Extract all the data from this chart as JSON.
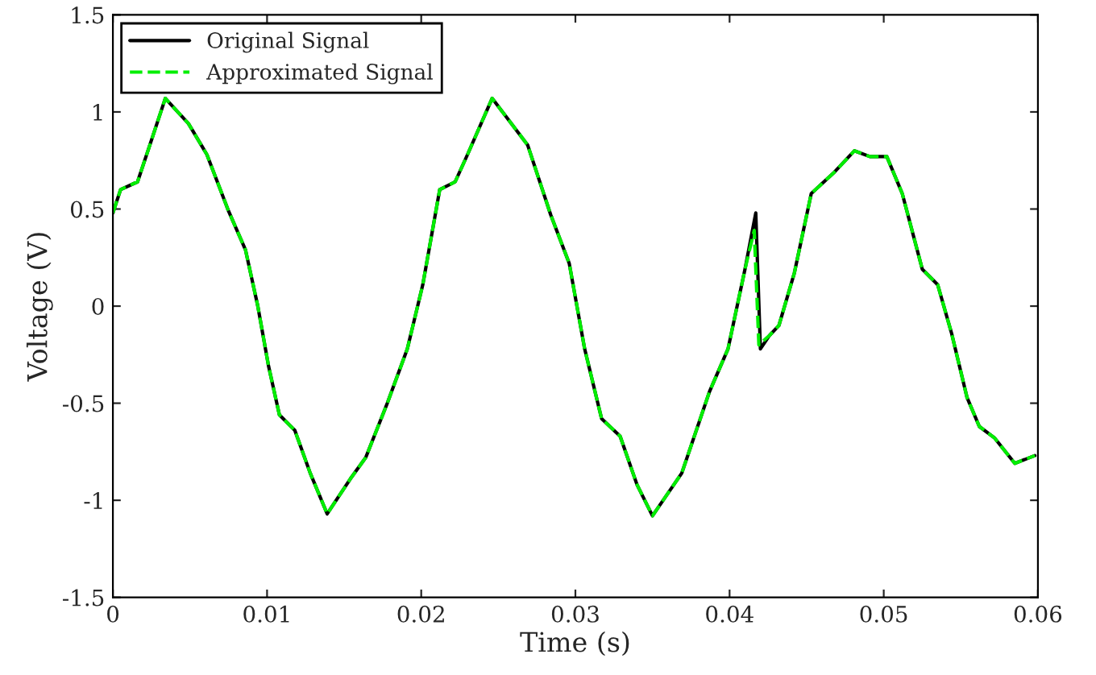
{
  "chart_data": {
    "type": "line",
    "xlabel": "Time (s)",
    "ylabel": "Voltage (V)",
    "xlim": [
      0,
      0.06
    ],
    "xticks": [
      0,
      0.01,
      0.02,
      0.03,
      0.04,
      0.05,
      0.06
    ],
    "ylim": [
      -1.5,
      1.5
    ],
    "yticks": [
      -1.5,
      -1,
      -0.5,
      0,
      0.5,
      1,
      1.5
    ],
    "grid": false,
    "legend": "top left",
    "series": [
      {
        "name": "Original Signal",
        "color": "#000000",
        "line_style": "solid",
        "x": [
          0,
          0.0005,
          0.0016,
          0.0024,
          0.0034,
          0.0049,
          0.0061,
          0.0075,
          0.0086,
          0.0094,
          0.0101,
          0.0108,
          0.0118,
          0.0128,
          0.0139,
          0.0154,
          0.0164,
          0.0178,
          0.0191,
          0.0201,
          0.0212,
          0.0222,
          0.023,
          0.0246,
          0.0269,
          0.0284,
          0.0296,
          0.0306,
          0.0317,
          0.0329,
          0.034,
          0.035,
          0.0369,
          0.0387,
          0.0399,
          0.041,
          0.0417,
          0.042,
          0.0426,
          0.0432,
          0.0442,
          0.0453,
          0.0468,
          0.0481,
          0.0491,
          0.0502,
          0.0512,
          0.0525,
          0.0535,
          0.0544,
          0.0554,
          0.0562,
          0.0572,
          0.0585,
          0.0598
        ],
        "values": [
          0.48,
          0.6,
          0.64,
          0.83,
          1.07,
          0.94,
          0.78,
          0.49,
          0.29,
          0,
          -0.31,
          -0.56,
          -0.64,
          -0.86,
          -1.07,
          -0.89,
          -0.78,
          -0.5,
          -0.22,
          0.11,
          0.6,
          0.64,
          0.78,
          1.07,
          0.83,
          0.47,
          0.22,
          -0.22,
          -0.58,
          -0.67,
          -0.92,
          -1.08,
          -0.86,
          -0.44,
          -0.22,
          0.19,
          0.48,
          -0.22,
          -0.15,
          -0.1,
          0.17,
          0.58,
          0.69,
          0.8,
          0.77,
          0.77,
          0.58,
          0.19,
          0.11,
          -0.14,
          -0.47,
          -0.62,
          -0.68,
          -0.81,
          -0.77
        ]
      },
      {
        "name": "Approximated Signal",
        "color": "#00ee00",
        "line_style": "dashed",
        "x": [
          0,
          0.0005,
          0.0016,
          0.0024,
          0.0034,
          0.0049,
          0.0061,
          0.0075,
          0.0086,
          0.0094,
          0.0101,
          0.0108,
          0.0118,
          0.0128,
          0.0139,
          0.0154,
          0.0164,
          0.0178,
          0.0191,
          0.0201,
          0.0212,
          0.0222,
          0.023,
          0.0246,
          0.0269,
          0.0284,
          0.0296,
          0.0306,
          0.0317,
          0.0329,
          0.034,
          0.035,
          0.0369,
          0.0387,
          0.0399,
          0.041,
          0.0416,
          0.0419,
          0.0426,
          0.0432,
          0.0442,
          0.0453,
          0.0468,
          0.0481,
          0.0491,
          0.0502,
          0.0512,
          0.0525,
          0.0535,
          0.0544,
          0.0554,
          0.0562,
          0.0572,
          0.0585,
          0.0598
        ],
        "values": [
          0.48,
          0.6,
          0.64,
          0.83,
          1.07,
          0.94,
          0.78,
          0.49,
          0.29,
          0,
          -0.31,
          -0.56,
          -0.64,
          -0.86,
          -1.07,
          -0.89,
          -0.78,
          -0.5,
          -0.22,
          0.11,
          0.6,
          0.64,
          0.78,
          1.07,
          0.83,
          0.47,
          0.22,
          -0.22,
          -0.58,
          -0.67,
          -0.92,
          -1.08,
          -0.86,
          -0.44,
          -0.22,
          0.19,
          0.39,
          -0.2,
          -0.15,
          -0.1,
          0.17,
          0.58,
          0.69,
          0.8,
          0.77,
          0.77,
          0.58,
          0.19,
          0.11,
          -0.14,
          -0.47,
          -0.62,
          -0.68,
          -0.81,
          -0.77
        ]
      }
    ]
  }
}
